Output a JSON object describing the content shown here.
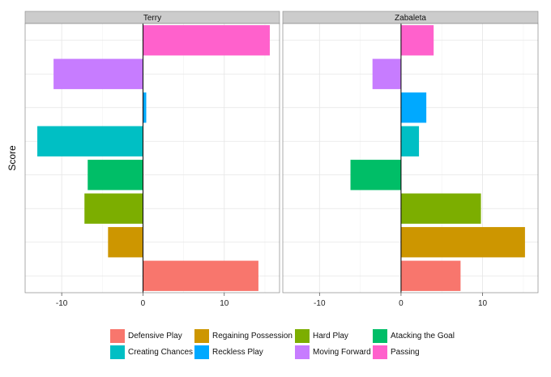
{
  "chart_data": {
    "type": "bar",
    "orientation": "horizontal",
    "ylabel": "Score",
    "xlabel": "",
    "xlim": [
      -14.5,
      16.8
    ],
    "xticks": [
      -10,
      0,
      10
    ],
    "categories": [
      "Defensive Play",
      "Regaining Possession",
      "Hard Play",
      "Atacking the Goal",
      "Creating Chances",
      "Reckless Play",
      "Moving Forward",
      "Passing"
    ],
    "colors": [
      "#F8766D",
      "#CD9600",
      "#7CAE00",
      "#00BE67",
      "#00BFC4",
      "#00A9FF",
      "#C77CFF",
      "#FF61CC"
    ],
    "panels": [
      {
        "name": "Terry",
        "values": [
          14.2,
          -4.3,
          -7.2,
          -6.8,
          -13.0,
          0.4,
          -11.0,
          15.6
        ]
      },
      {
        "name": "Zabaleta",
        "values": [
          7.3,
          15.2,
          9.8,
          -6.2,
          2.2,
          3.1,
          -3.5,
          4.0
        ]
      }
    ],
    "legend": {
      "position": "bottom",
      "items": [
        "Defensive Play",
        "Regaining Possession",
        "Hard Play",
        "Atacking the Goal",
        "Creating Chances",
        "Reckless Play",
        "Moving Forward",
        "Passing"
      ]
    }
  }
}
